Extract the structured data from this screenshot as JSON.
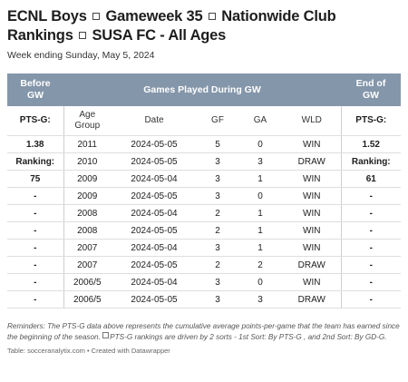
{
  "title": {
    "part1": "ECNL Boys",
    "part2": "Gameweek 35",
    "part3": "Nationwide Club Rankings",
    "part4": "SUSA FC - All Ages"
  },
  "subtitle": "Week ending Sunday, May 5, 2024",
  "groups": {
    "before": [
      "Before",
      "GW"
    ],
    "games": "Games Played During GW",
    "end": [
      "End of",
      "GW"
    ]
  },
  "columns": {
    "pts_before": "PTS-G:",
    "age_group": [
      "Age",
      "Group"
    ],
    "date": "Date",
    "gf": "GF",
    "ga": "GA",
    "wld": "WLD",
    "pts_end": "PTS-G:"
  },
  "rows": [
    {
      "before": "1.38",
      "age": "2011",
      "date": "2024-05-05",
      "gf": "5",
      "ga": "0",
      "wld": "WIN",
      "end": "1.52"
    },
    {
      "before": "Ranking:",
      "age": "2010",
      "date": "2024-05-05",
      "gf": "3",
      "ga": "3",
      "wld": "DRAW",
      "end": "Ranking:"
    },
    {
      "before": "75",
      "age": "2009",
      "date": "2024-05-04",
      "gf": "3",
      "ga": "1",
      "wld": "WIN",
      "end": "61"
    },
    {
      "before": "-",
      "age": "2009",
      "date": "2024-05-05",
      "gf": "3",
      "ga": "0",
      "wld": "WIN",
      "end": "-"
    },
    {
      "before": "-",
      "age": "2008",
      "date": "2024-05-04",
      "gf": "2",
      "ga": "1",
      "wld": "WIN",
      "end": "-"
    },
    {
      "before": "-",
      "age": "2008",
      "date": "2024-05-05",
      "gf": "2",
      "ga": "1",
      "wld": "WIN",
      "end": "-"
    },
    {
      "before": "-",
      "age": "2007",
      "date": "2024-05-04",
      "gf": "3",
      "ga": "1",
      "wld": "WIN",
      "end": "-"
    },
    {
      "before": "-",
      "age": "2007",
      "date": "2024-05-05",
      "gf": "2",
      "ga": "2",
      "wld": "DRAW",
      "end": "-"
    },
    {
      "before": "-",
      "age": "2006/5",
      "date": "2024-05-04",
      "gf": "3",
      "ga": "0",
      "wld": "WIN",
      "end": "-"
    },
    {
      "before": "-",
      "age": "2006/5",
      "date": "2024-05-05",
      "gf": "3",
      "ga": "3",
      "wld": "DRAW",
      "end": "-"
    }
  ],
  "notes": {
    "label": "Reminders:",
    "text1": "The PTS-G data above represents the cumulative average points-per-game that the team has earned since the beginning of the season.",
    "text2": "PTS-G rankings are driven by 2 sorts - 1st Sort: By PTS-G , and 2nd Sort: By GD-G."
  },
  "source": "Table: socceranalytix.com • Created with Datawrapper",
  "colors": {
    "header_bg": "#8496aa",
    "header_text": "#ffffff",
    "row_border": "#dedede"
  }
}
